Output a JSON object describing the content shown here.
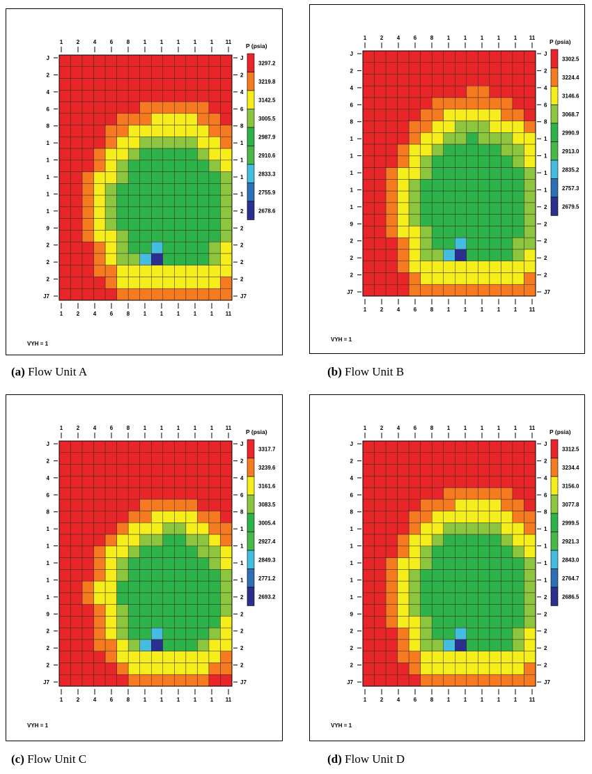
{
  "figure": {
    "legend_title": "P (psia)",
    "vyh_label": "VYH = 1",
    "col_labels": [
      "1",
      "2",
      "4",
      "6",
      "8",
      "1",
      "1",
      "1",
      "1",
      "1",
      "11"
    ],
    "row_labels_left": [
      "J",
      "2",
      "4",
      "6",
      "8",
      "1",
      "1",
      "1",
      "1",
      "1",
      "9",
      "2",
      "2",
      "2",
      "J7"
    ],
    "row_labels_right": [
      "J",
      "2",
      "4",
      "6",
      "8",
      "1",
      "1",
      "1",
      "1",
      "2",
      "2",
      "2",
      "2",
      "2",
      "J7"
    ]
  },
  "colors": {
    "red": "#e8262a",
    "orange": "#f57a20",
    "yellow": "#f5ee1a",
    "ygreen": "#8cc63f",
    "green": "#2db34a",
    "mgreen": "#49b848",
    "cyan": "#45bde0",
    "blue": "#2c6fb5",
    "navy": "#2b2f8f"
  },
  "chart_data": [
    {
      "type": "heatmap",
      "caption_prefix": "(a)",
      "caption_text": "Flow Unit A",
      "legend_label": "P (psia)",
      "legend_values": [
        "3297.2",
        "3219.8",
        "3142.5",
        "3005.5",
        "2987.9",
        "2910.6",
        "2833.3",
        "2755.9",
        "2678.6"
      ],
      "grid": {
        "cols": 15,
        "rows": 21
      },
      "well_cell": {
        "col": 8,
        "row": 17
      }
    },
    {
      "type": "heatmap",
      "caption_prefix": "(b)",
      "caption_text": "Flow Unit B",
      "legend_label": "P (psia)",
      "legend_values": [
        "3302.5",
        "3224.4",
        "3146.6",
        "3068.7",
        "2990.9",
        "2913.0",
        "2835.2",
        "2757.3",
        "2679.5"
      ],
      "grid": {
        "cols": 15,
        "rows": 21
      },
      "well_cell": {
        "col": 8,
        "row": 17
      }
    },
    {
      "type": "heatmap",
      "caption_prefix": "(c)",
      "caption_text": "Flow Unit C",
      "legend_label": "P (psia)",
      "legend_values": [
        "3317.7",
        "3239.6",
        "3161.6",
        "3083.5",
        "3005.4",
        "2927.4",
        "2849.3",
        "2771.2",
        "2693.2"
      ],
      "grid": {
        "cols": 15,
        "rows": 21
      },
      "well_cell": {
        "col": 8,
        "row": 17
      }
    },
    {
      "type": "heatmap",
      "caption_prefix": "(d)",
      "caption_text": "Flow Unit D",
      "legend_label": "P (psia)",
      "legend_values": [
        "3312.5",
        "3234.4",
        "3156.0",
        "3077.8",
        "2999.5",
        "2921.3",
        "2843.0",
        "2764.7",
        "2686.5"
      ],
      "grid": {
        "cols": 15,
        "rows": 21
      },
      "well_cell": {
        "col": 8,
        "row": 17
      }
    }
  ]
}
